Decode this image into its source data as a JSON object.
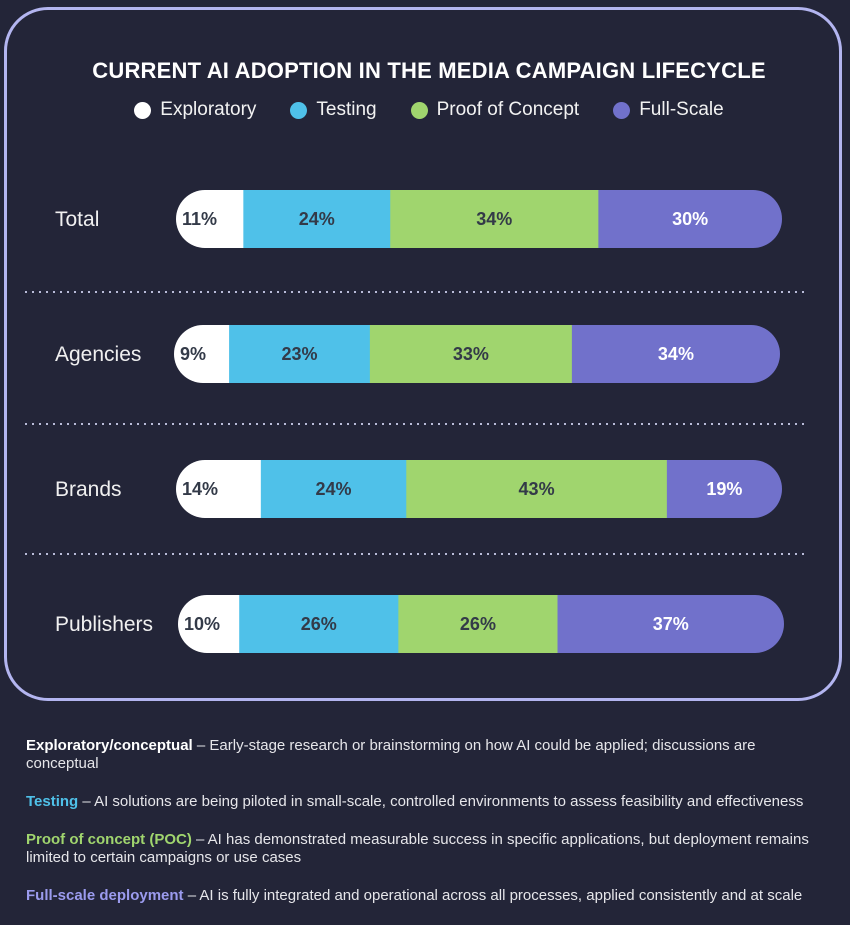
{
  "chart_data": {
    "type": "bar",
    "orientation": "horizontal",
    "stacked": true,
    "title": "CURRENT AI ADOPTION IN THE MEDIA CAMPAIGN LIFECYCLE",
    "legend_position": "top",
    "categories": [
      "Total",
      "Agencies",
      "Brands",
      "Publishers"
    ],
    "series": [
      {
        "name": "Exploratory",
        "color": "#ffffff",
        "values": [
          11,
          9,
          14,
          10
        ],
        "labels": [
          "11%",
          "9%",
          "14%",
          "10%"
        ]
      },
      {
        "name": "Testing",
        "color": "#4fc1e9",
        "values": [
          24,
          23,
          24,
          26
        ],
        "labels": [
          "24%",
          "23%",
          "24%",
          "26%"
        ]
      },
      {
        "name": "Proof of Concept",
        "color": "#a0d56e",
        "values": [
          34,
          33,
          43,
          26
        ],
        "labels": [
          "34%",
          "33%",
          "43%",
          "26%"
        ]
      },
      {
        "name": "Full-Scale",
        "color": "#7171cb",
        "values": [
          30,
          34,
          19,
          37
        ],
        "labels": [
          "30%",
          "34%",
          "19%",
          "37%"
        ]
      }
    ]
  },
  "definitions": [
    {
      "term": "Exploratory/conceptual",
      "color": "#ffffff",
      "text": " – Early-stage research or brainstorming on how AI could be applied; discussions are conceptual"
    },
    {
      "term": "Testing",
      "color": "#4fc1e9",
      "text": " – AI solutions are being piloted in small-scale, controlled environments to assess feasibility and effectiveness"
    },
    {
      "term": "Proof of concept (POC)",
      "color": "#a0d56e",
      "text": " – AI has demonstrated measurable success in specific applications, but deployment remains limited to certain campaigns or use cases"
    },
    {
      "term": "Full-scale deployment",
      "color": "#9b9bee",
      "text": " – AI is fully integrated and operational across all processes, applied consistently and at scale"
    }
  ]
}
